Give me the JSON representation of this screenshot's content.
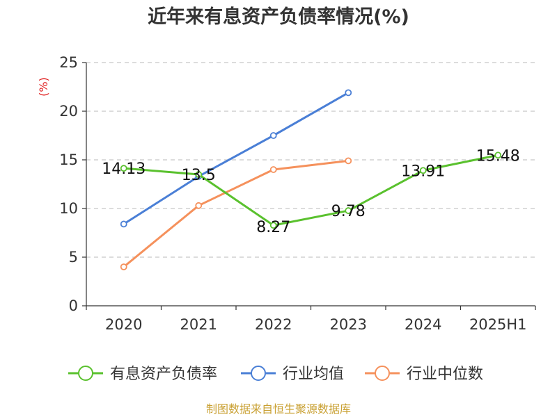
{
  "chart_data": {
    "type": "line",
    "title": "近年来有息资产负债率情况(%)",
    "unit_label": "(%)",
    "categories": [
      "2020",
      "2021",
      "2022",
      "2023",
      "2024",
      "2025H1"
    ],
    "ylim": [
      0,
      25
    ],
    "yticks": [
      0,
      5,
      10,
      15,
      20,
      25
    ],
    "grid": true,
    "legend_position": "bottom",
    "series": [
      {
        "name": "有息资产负债率",
        "color": "#5ac12e",
        "values": [
          14.13,
          13.5,
          8.27,
          9.78,
          13.91,
          15.48
        ],
        "labels": [
          "14.13",
          "13.5",
          "8.27",
          "9.78",
          "13.91",
          "15.48"
        ]
      },
      {
        "name": "行业均值",
        "color": "#4a7fd6",
        "values": [
          8.4,
          13.3,
          17.5,
          21.9,
          null,
          null
        ]
      },
      {
        "name": "行业中位数",
        "color": "#f5915c",
        "values": [
          4.0,
          10.3,
          14.0,
          14.9,
          null,
          null
        ]
      }
    ]
  },
  "source": "制图数据来自恒生聚源数据库"
}
